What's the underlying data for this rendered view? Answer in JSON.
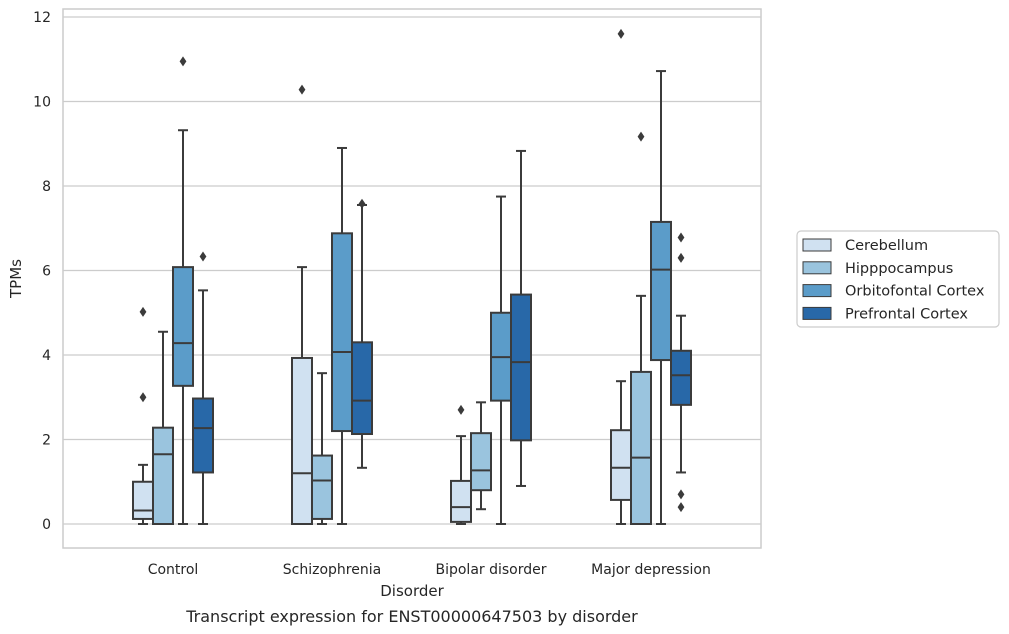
{
  "chart_data": {
    "type": "boxplot",
    "caption": "Transcript expression for ENST00000647503 by disorder",
    "xlabel": "Disorder",
    "ylabel": "TPMs",
    "ylim": [
      -0.55,
      12.2
    ],
    "yticks": [
      0,
      2,
      4,
      6,
      8,
      10,
      12
    ],
    "grid": true,
    "legend_position": "right-outside",
    "categories": [
      "Control",
      "Schizophrenia",
      "Bipolar disorder",
      "Major depression"
    ],
    "series": [
      {
        "name": "Cerebellum",
        "color": "#d0e1f1",
        "boxes": [
          {
            "whisker_low": 0,
            "q1": 0.12,
            "median": 0.32,
            "q3": 1.0,
            "whisker_high": 1.4,
            "outliers": [
              3.0,
              5.02
            ]
          },
          {
            "whisker_low": 0,
            "q1": 0,
            "median": 1.2,
            "q3": 3.93,
            "whisker_high": 6.08,
            "outliers": [
              10.28
            ]
          },
          {
            "whisker_low": 0,
            "q1": 0.05,
            "median": 0.4,
            "q3": 1.02,
            "whisker_high": 2.08,
            "outliers": [
              2.7
            ]
          },
          {
            "whisker_low": 0,
            "q1": 0.57,
            "median": 1.33,
            "q3": 2.22,
            "whisker_high": 3.38,
            "outliers": [
              11.6
            ]
          }
        ]
      },
      {
        "name": "Hipppocampus",
        "color": "#9ac4de",
        "boxes": [
          {
            "whisker_low": 0,
            "q1": 0,
            "median": 1.65,
            "q3": 2.28,
            "whisker_high": 4.55,
            "outliers": []
          },
          {
            "whisker_low": 0,
            "q1": 0.12,
            "median": 1.03,
            "q3": 1.62,
            "whisker_high": 3.57,
            "outliers": []
          },
          {
            "whisker_low": 0.35,
            "q1": 0.8,
            "median": 1.27,
            "q3": 2.15,
            "whisker_high": 2.88,
            "outliers": []
          },
          {
            "whisker_low": 0,
            "q1": 0,
            "median": 1.57,
            "q3": 3.6,
            "whisker_high": 5.4,
            "outliers": [
              9.17
            ]
          }
        ]
      },
      {
        "name": "Orbitofontal Cortex",
        "color": "#5b9cc9",
        "boxes": [
          {
            "whisker_low": 0,
            "q1": 3.27,
            "median": 4.28,
            "q3": 6.08,
            "whisker_high": 9.32,
            "outliers": [
              10.95
            ]
          },
          {
            "whisker_low": 0,
            "q1": 2.2,
            "median": 4.07,
            "q3": 6.88,
            "whisker_high": 8.9,
            "outliers": []
          },
          {
            "whisker_low": 0,
            "q1": 2.92,
            "median": 3.95,
            "q3": 5.0,
            "whisker_high": 7.75,
            "outliers": []
          },
          {
            "whisker_low": 0,
            "q1": 3.88,
            "median": 6.02,
            "q3": 7.15,
            "whisker_high": 10.72,
            "outliers": []
          }
        ]
      },
      {
        "name": "Prefrontal Cortex",
        "color": "#2868a8",
        "boxes": [
          {
            "whisker_low": 0,
            "q1": 1.22,
            "median": 2.27,
            "q3": 2.97,
            "whisker_high": 5.53,
            "outliers": [
              6.33
            ]
          },
          {
            "whisker_low": 1.33,
            "q1": 2.13,
            "median": 2.92,
            "q3": 4.3,
            "whisker_high": 7.55,
            "outliers": [
              7.58
            ]
          },
          {
            "whisker_low": 0.9,
            "q1": 1.98,
            "median": 3.83,
            "q3": 5.43,
            "whisker_high": 8.83,
            "outliers": []
          },
          {
            "whisker_low": 1.22,
            "q1": 2.82,
            "median": 3.52,
            "q3": 4.1,
            "whisker_high": 4.93,
            "outliers": [
              0.4,
              0.7,
              6.3,
              6.78
            ]
          }
        ]
      }
    ]
  }
}
